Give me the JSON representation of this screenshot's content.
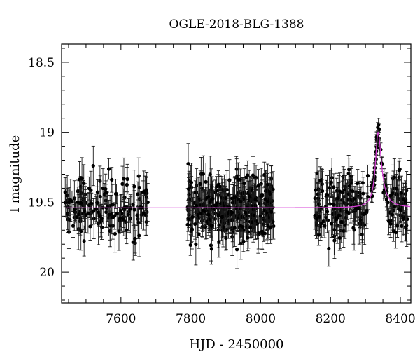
{
  "chart_data": {
    "type": "scatter",
    "title": "OGLE-2018-BLG-1388",
    "xlabel": "HJD - 2450000",
    "ylabel": "I magnitude",
    "xlim": [
      7430,
      8430
    ],
    "ylim": [
      20.22,
      18.37
    ],
    "y_inverted": true,
    "x_ticks": [
      7600,
      7800,
      8000,
      8200,
      8400
    ],
    "x_tick_labels": [
      "7600",
      "7800",
      "8000",
      "8200",
      "8400"
    ],
    "y_ticks": [
      18.5,
      19,
      19.5,
      20
    ],
    "y_tick_labels": [
      "18.5",
      "19",
      "19.5",
      "20"
    ],
    "grid": false,
    "model_color": "#d63fd6",
    "point_color": "#000000",
    "baseline_mag": 19.54,
    "peak": {
      "x": 8336,
      "mag": 19.0
    },
    "observing_seasons": [
      {
        "x_start": 7440,
        "x_end": 7680,
        "points": 150
      },
      {
        "x_start": 7790,
        "x_end": 8040,
        "points": 340
      },
      {
        "x_start": 8155,
        "x_end": 8420,
        "points": 240
      }
    ],
    "series": [
      {
        "type": "data_with_errors"
      },
      {
        "type": "model_curve"
      }
    ]
  }
}
